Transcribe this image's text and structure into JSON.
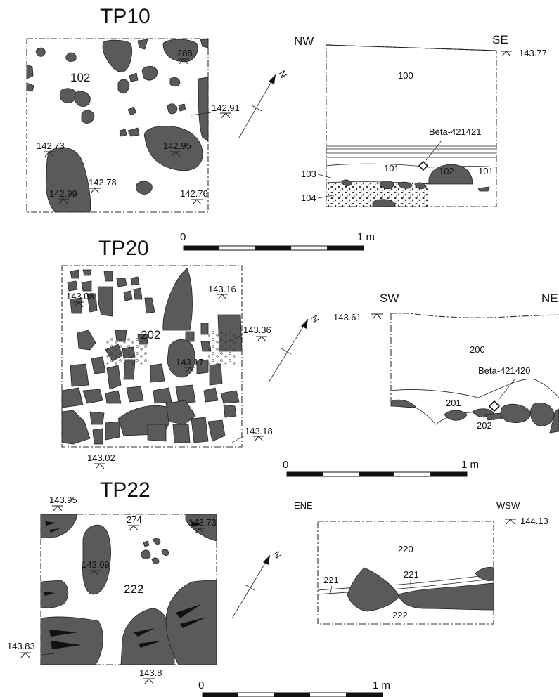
{
  "tp10": {
    "title": "TP10",
    "plan": {
      "context": "102",
      "elev_288": "288",
      "elev_14291": "142.91",
      "elev_14273": "142.73",
      "elev_14295": "142.95",
      "elev_14278": "142.78",
      "elev_14299": "142.99",
      "elev_14276": "142.76"
    },
    "section": {
      "dir_left": "NW",
      "dir_right": "SE",
      "elev": "143.77",
      "ctx_100": "100",
      "ctx_101a": "101",
      "ctx_102": "102",
      "ctx_101b": "101",
      "ctx_103": "103",
      "ctx_104": "104",
      "sample": "Beta-421421"
    },
    "scale": {
      "zero": "0",
      "end": "1 m"
    }
  },
  "tp20": {
    "title": "TP20",
    "plan": {
      "context": "202",
      "elev_14308": "143.08",
      "elev_14316": "143.16",
      "elev_14336": "143.36",
      "elev_14317": "143.17",
      "elev_14318": "143.18",
      "elev_14302": "143.02"
    },
    "section": {
      "dir_left": "SW",
      "dir_right": "NE",
      "elev": "143.61",
      "ctx_200": "200",
      "ctx_201": "201",
      "ctx_202": "202",
      "sample": "Beta-421420"
    },
    "scale": {
      "zero": "0",
      "end": "1 m"
    }
  },
  "tp22": {
    "title": "TP22",
    "plan": {
      "context": "222",
      "elev_14395": "143.95",
      "elev_274": "274",
      "elev_14373": "143.73",
      "elev_14309": "143.09",
      "elev_14383": "143.83",
      "elev_1438": "143.8"
    },
    "section": {
      "dir_left": "ENE",
      "dir_right": "WSW",
      "elev": "144.13",
      "ctx_220": "220",
      "ctx_221a": "221",
      "ctx_221b": "221",
      "ctx_222": "222"
    },
    "scale": {
      "zero": "0",
      "end": "1 m"
    }
  },
  "north_label": "N",
  "colors": {
    "stone": "#5a5a5a",
    "line": "#222222"
  }
}
